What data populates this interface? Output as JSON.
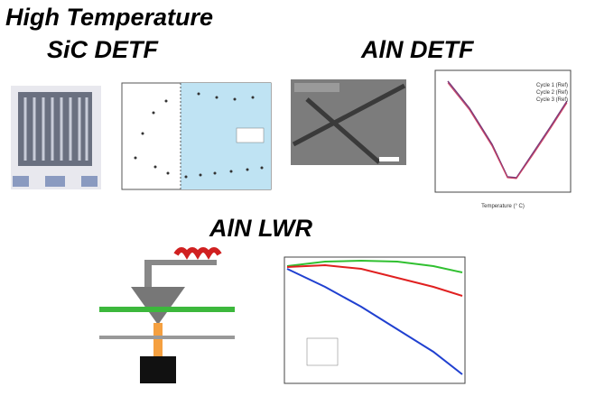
{
  "header": {
    "title": "High Temperature",
    "subtitle": "SiC DETF"
  },
  "panels": [
    {
      "heading": "AlN DETF",
      "legend": [
        "Cycle 1 (Ref)",
        "Cycle 2 (Ref)",
        "Cycle 3 (Ref)"
      ],
      "x_label": "Temperature (° C)"
    },
    {
      "heading": "AlN LWR"
    }
  ]
}
